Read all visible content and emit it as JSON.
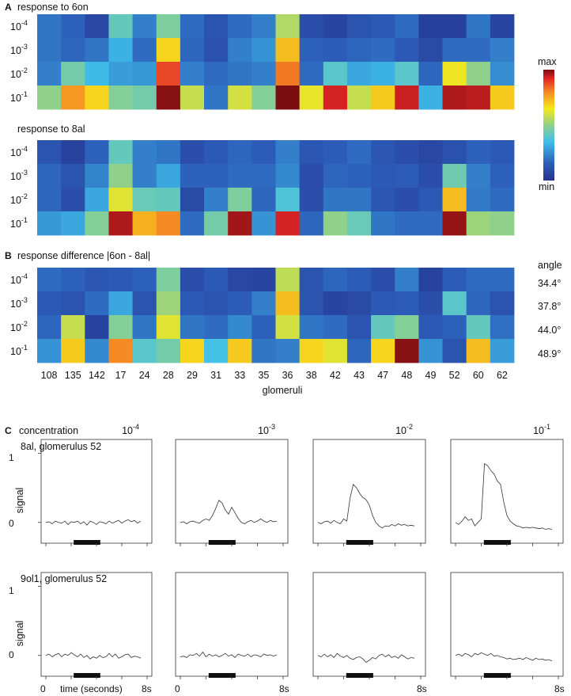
{
  "panels": {
    "A": {
      "label": "A",
      "title_6on": "response to 6on",
      "title_8al": "response to 8al"
    },
    "B": {
      "label": "B",
      "title": "response difference |6on - 8al|",
      "angle_header": "angle",
      "angles": [
        "34.4°",
        "37.8°",
        "44.0°",
        "48.9°"
      ],
      "xlabel": "glomeruli"
    },
    "C": {
      "label": "C",
      "concentration_label": "concentration",
      "concentration_labels": [
        {
          "base": "10",
          "exp": "-4"
        },
        {
          "base": "10",
          "exp": "-3"
        },
        {
          "base": "10",
          "exp": "-2"
        },
        {
          "base": "10",
          "exp": "-1"
        }
      ],
      "row1_title": "8al, glomerulus 52",
      "row2_title": "9ol1, glomerulus 52",
      "ylabel": "signal",
      "yticks": [
        "1",
        "0"
      ],
      "x_start": "0",
      "x_end": "8s",
      "xlabel": "time (seconds)"
    }
  },
  "colorbar": {
    "max_label": "max",
    "min_label": "min"
  },
  "chart_data": [
    {
      "type": "heatmap",
      "title": "response to 6on",
      "xlabel": "",
      "rows": [
        {
          "base": "10",
          "exp": "-4"
        },
        {
          "base": "10",
          "exp": "-3"
        },
        {
          "base": "10",
          "exp": "-2"
        },
        {
          "base": "10",
          "exp": "-1"
        }
      ],
      "columns": [
        "108",
        "135",
        "142",
        "17",
        "24",
        "28",
        "29",
        "31",
        "33",
        "35",
        "36",
        "38",
        "42",
        "43",
        "47",
        "48",
        "49",
        "52",
        "60",
        "62"
      ],
      "scale": "0 = min (dark blue) ... 1 = max (dark red)",
      "values": [
        [
          0.2,
          0.16,
          0.08,
          0.42,
          0.22,
          0.47,
          0.18,
          0.12,
          0.18,
          0.22,
          0.55,
          0.1,
          0.07,
          0.12,
          0.14,
          0.18,
          0.05,
          0.05,
          0.2,
          0.07
        ],
        [
          0.2,
          0.17,
          0.2,
          0.32,
          0.18,
          0.68,
          0.17,
          0.11,
          0.22,
          0.26,
          0.72,
          0.16,
          0.15,
          0.17,
          0.18,
          0.14,
          0.09,
          0.18,
          0.18,
          0.22
        ],
        [
          0.22,
          0.45,
          0.34,
          0.28,
          0.27,
          0.88,
          0.22,
          0.18,
          0.2,
          0.22,
          0.82,
          0.18,
          0.4,
          0.3,
          0.32,
          0.4,
          0.17,
          0.64,
          0.5,
          0.25
        ],
        [
          0.5,
          0.78,
          0.68,
          0.48,
          0.45,
          0.99,
          0.58,
          0.2,
          0.6,
          0.48,
          1.0,
          0.63,
          0.93,
          0.58,
          0.7,
          0.94,
          0.32,
          0.96,
          0.95,
          0.7
        ]
      ]
    },
    {
      "type": "heatmap",
      "title": "response to 8al",
      "xlabel": "",
      "rows": [
        {
          "base": "10",
          "exp": "-4"
        },
        {
          "base": "10",
          "exp": "-3"
        },
        {
          "base": "10",
          "exp": "-2"
        },
        {
          "base": "10",
          "exp": "-1"
        }
      ],
      "columns": [
        "108",
        "135",
        "142",
        "17",
        "24",
        "28",
        "29",
        "31",
        "33",
        "35",
        "36",
        "38",
        "42",
        "43",
        "47",
        "48",
        "49",
        "52",
        "60",
        "62"
      ],
      "scale": "0 = min (dark blue) ... 1 = max (dark red)",
      "values": [
        [
          0.12,
          0.06,
          0.16,
          0.42,
          0.22,
          0.2,
          0.1,
          0.14,
          0.17,
          0.15,
          0.22,
          0.13,
          0.15,
          0.18,
          0.13,
          0.1,
          0.08,
          0.11,
          0.16,
          0.14
        ],
        [
          0.17,
          0.12,
          0.23,
          0.5,
          0.22,
          0.3,
          0.16,
          0.16,
          0.18,
          0.18,
          0.24,
          0.1,
          0.17,
          0.16,
          0.14,
          0.15,
          0.1,
          0.44,
          0.22,
          0.16
        ],
        [
          0.17,
          0.1,
          0.3,
          0.62,
          0.43,
          0.42,
          0.09,
          0.22,
          0.47,
          0.17,
          0.38,
          0.1,
          0.2,
          0.2,
          0.13,
          0.1,
          0.14,
          0.72,
          0.21,
          0.18
        ],
        [
          0.27,
          0.3,
          0.48,
          0.96,
          0.74,
          0.8,
          0.18,
          0.45,
          0.97,
          0.26,
          0.93,
          0.17,
          0.5,
          0.43,
          0.2,
          0.18,
          0.18,
          0.98,
          0.52,
          0.5
        ]
      ]
    },
    {
      "type": "heatmap",
      "title": "response difference |6on - 8al|",
      "xlabel": "glomeruli",
      "rows": [
        {
          "base": "10",
          "exp": "-4"
        },
        {
          "base": "10",
          "exp": "-3"
        },
        {
          "base": "10",
          "exp": "-2"
        },
        {
          "base": "10",
          "exp": "-1"
        }
      ],
      "columns": [
        "108",
        "135",
        "142",
        "17",
        "24",
        "28",
        "29",
        "31",
        "33",
        "35",
        "36",
        "38",
        "42",
        "43",
        "47",
        "48",
        "49",
        "52",
        "60",
        "62"
      ],
      "angles": [
        "34.4°",
        "37.8°",
        "44.0°",
        "48.9°"
      ],
      "scale": "0 = min (dark blue) ... 1 = max (dark red)",
      "values": [
        [
          0.18,
          0.16,
          0.13,
          0.14,
          0.16,
          0.47,
          0.1,
          0.14,
          0.08,
          0.07,
          0.57,
          0.12,
          0.17,
          0.15,
          0.1,
          0.22,
          0.06,
          0.15,
          0.18,
          0.18
        ],
        [
          0.14,
          0.12,
          0.18,
          0.3,
          0.12,
          0.52,
          0.14,
          0.12,
          0.15,
          0.22,
          0.72,
          0.12,
          0.07,
          0.09,
          0.14,
          0.15,
          0.1,
          0.4,
          0.17,
          0.12
        ],
        [
          0.17,
          0.58,
          0.06,
          0.48,
          0.2,
          0.62,
          0.2,
          0.18,
          0.24,
          0.16,
          0.6,
          0.2,
          0.18,
          0.12,
          0.42,
          0.48,
          0.14,
          0.16,
          0.42,
          0.19
        ],
        [
          0.26,
          0.7,
          0.24,
          0.8,
          0.4,
          0.45,
          0.68,
          0.36,
          0.7,
          0.2,
          0.22,
          0.68,
          0.62,
          0.17,
          0.68,
          0.99,
          0.26,
          0.12,
          0.72,
          0.28
        ]
      ]
    },
    {
      "type": "line",
      "title": "8al, glomerulus 52",
      "xlabel": "time (seconds)",
      "ylabel": "signal",
      "xlim": [
        0,
        8
      ],
      "ylim": [
        -0.3,
        1.2
      ],
      "stimulus_window_s": [
        2.2,
        4.3
      ],
      "series": [
        {
          "name": "10^-4",
          "x": [
            0,
            0.25,
            0.5,
            0.75,
            1,
            1.25,
            1.5,
            1.75,
            2,
            2.25,
            2.5,
            2.75,
            3,
            3.25,
            3.5,
            3.75,
            4,
            4.25,
            4.5,
            4.75,
            5,
            5.25,
            5.5,
            5.75,
            6,
            6.25,
            6.5,
            6.75,
            7,
            7.25,
            7.5
          ],
          "values": [
            0.0,
            0.01,
            -0.02,
            0.02,
            0.0,
            -0.01,
            0.02,
            -0.03,
            0.01,
            0.0,
            0.02,
            -0.02,
            0.01,
            -0.04,
            0.02,
            0.0,
            -0.03,
            0.01,
            0.0,
            -0.02,
            0.02,
            -0.01,
            0.01,
            0.03,
            -0.01,
            0.02,
            0.04,
            0.01,
            0.03,
            -0.01,
            0.02
          ]
        },
        {
          "name": "10^-3",
          "x": [
            0,
            0.25,
            0.5,
            0.75,
            1,
            1.25,
            1.5,
            1.75,
            2,
            2.25,
            2.5,
            2.75,
            3,
            3.25,
            3.5,
            3.75,
            4,
            4.25,
            4.5,
            4.75,
            5,
            5.25,
            5.5,
            5.75,
            6,
            6.25,
            6.5,
            6.75,
            7,
            7.25,
            7.5
          ],
          "values": [
            0.0,
            0.01,
            -0.02,
            0.01,
            0.02,
            0.0,
            -0.01,
            0.03,
            0.05,
            0.03,
            0.1,
            0.2,
            0.32,
            0.28,
            0.18,
            0.12,
            0.22,
            0.14,
            0.06,
            0.0,
            -0.02,
            0.01,
            0.03,
            0.0,
            0.02,
            0.05,
            0.02,
            0.0,
            0.03,
            0.01,
            0.02
          ]
        },
        {
          "name": "10^-2",
          "x": [
            0,
            0.25,
            0.5,
            0.75,
            1,
            1.25,
            1.5,
            1.75,
            2,
            2.25,
            2.5,
            2.75,
            3,
            3.25,
            3.5,
            3.75,
            4,
            4.25,
            4.5,
            4.75,
            5,
            5.25,
            5.5,
            5.75,
            6,
            6.25,
            6.5,
            6.75,
            7,
            7.25,
            7.5
          ],
          "values": [
            0.0,
            -0.02,
            0.01,
            0.02,
            -0.01,
            0.03,
            0.0,
            -0.02,
            0.05,
            0.02,
            0.35,
            0.55,
            0.5,
            0.42,
            0.36,
            0.33,
            0.25,
            0.1,
            0.0,
            -0.05,
            -0.08,
            -0.05,
            -0.06,
            -0.03,
            -0.05,
            -0.02,
            -0.04,
            -0.03,
            -0.05,
            -0.04,
            -0.05
          ]
        },
        {
          "name": "10^-1",
          "x": [
            0,
            0.25,
            0.5,
            0.75,
            1,
            1.25,
            1.5,
            1.75,
            2,
            2.25,
            2.5,
            2.75,
            3,
            3.25,
            3.5,
            3.75,
            4,
            4.25,
            4.5,
            4.75,
            5,
            5.25,
            5.5,
            5.75,
            6,
            6.25,
            6.5,
            6.75,
            7,
            7.25,
            7.5
          ],
          "values": [
            0.0,
            -0.03,
            0.02,
            0.08,
            0.03,
            0.05,
            -0.05,
            0.0,
            0.05,
            0.85,
            0.82,
            0.75,
            0.7,
            0.6,
            0.55,
            0.3,
            0.1,
            0.02,
            -0.02,
            -0.05,
            -0.06,
            -0.08,
            -0.07,
            -0.08,
            -0.07,
            -0.08,
            -0.09,
            -0.08,
            -0.1,
            -0.09,
            -0.1
          ]
        }
      ]
    },
    {
      "type": "line",
      "title": "9ol1, glomerulus 52",
      "xlabel": "time (seconds)",
      "ylabel": "signal",
      "xlim": [
        0,
        8
      ],
      "ylim": [
        -0.3,
        1.2
      ],
      "stimulus_window_s": [
        2.2,
        4.3
      ],
      "series": [
        {
          "name": "10^-4",
          "x": [
            0,
            0.25,
            0.5,
            0.75,
            1,
            1.25,
            1.5,
            1.75,
            2,
            2.25,
            2.5,
            2.75,
            3,
            3.25,
            3.5,
            3.75,
            4,
            4.25,
            4.5,
            4.75,
            5,
            5.25,
            5.5,
            5.75,
            6,
            6.25,
            6.5,
            6.75,
            7,
            7.25,
            7.5
          ],
          "values": [
            0.0,
            0.02,
            -0.02,
            0.01,
            0.03,
            -0.02,
            0.02,
            0.0,
            0.04,
            0.01,
            -0.02,
            0.02,
            -0.03,
            0.0,
            -0.05,
            -0.02,
            -0.04,
            0.0,
            -0.03,
            -0.02,
            0.03,
            -0.02,
            0.02,
            -0.04,
            -0.02,
            0.01,
            0.02,
            -0.03,
            -0.01,
            -0.02,
            -0.04
          ]
        },
        {
          "name": "10^-3",
          "x": [
            0,
            0.25,
            0.5,
            0.75,
            1,
            1.25,
            1.5,
            1.75,
            2,
            2.25,
            2.5,
            2.75,
            3,
            3.25,
            3.5,
            3.75,
            4,
            4.25,
            4.5,
            4.75,
            5,
            5.25,
            5.5,
            5.75,
            6,
            6.25,
            6.5,
            6.75,
            7,
            7.25,
            7.5
          ],
          "values": [
            -0.02,
            -0.01,
            -0.03,
            0.01,
            0.0,
            0.03,
            -0.01,
            0.05,
            -0.02,
            0.02,
            -0.01,
            0.01,
            -0.02,
            0.0,
            0.03,
            -0.01,
            0.01,
            -0.03,
            0.02,
            0.0,
            -0.01,
            0.02,
            -0.02,
            0.01,
            0.0,
            -0.02,
            0.02,
            0.0,
            0.01,
            -0.01,
            0.01
          ]
        },
        {
          "name": "10^-2",
          "x": [
            0,
            0.25,
            0.5,
            0.75,
            1,
            1.25,
            1.5,
            1.75,
            2,
            2.25,
            2.5,
            2.75,
            3,
            3.25,
            3.5,
            3.75,
            4,
            4.25,
            4.5,
            4.75,
            5,
            5.25,
            5.5,
            5.75,
            6,
            6.25,
            6.5,
            6.75,
            7,
            7.25,
            7.5
          ],
          "values": [
            0.0,
            -0.02,
            0.02,
            -0.02,
            0.01,
            -0.03,
            0.03,
            -0.01,
            -0.03,
            0.0,
            -0.04,
            -0.06,
            -0.03,
            -0.02,
            -0.05,
            -0.1,
            -0.07,
            -0.03,
            -0.05,
            0.0,
            0.02,
            -0.02,
            0.01,
            -0.03,
            -0.01,
            -0.04,
            0.01,
            -0.02,
            -0.05,
            -0.03,
            -0.04
          ]
        },
        {
          "name": "10^-1",
          "x": [
            0,
            0.25,
            0.5,
            0.75,
            1,
            1.25,
            1.5,
            1.75,
            2,
            2.25,
            2.5,
            2.75,
            3,
            3.25,
            3.5,
            3.75,
            4,
            4.25,
            4.5,
            4.75,
            5,
            5.25,
            5.5,
            5.75,
            6,
            6.25,
            6.5,
            6.75,
            7,
            7.25,
            7.5
          ],
          "values": [
            0.0,
            0.02,
            -0.01,
            0.03,
            0.01,
            -0.02,
            0.03,
            0.01,
            0.04,
            0.02,
            0.0,
            0.03,
            -0.01,
            0.0,
            -0.02,
            -0.03,
            -0.05,
            -0.04,
            -0.06,
            -0.05,
            -0.04,
            -0.06,
            -0.03,
            -0.05,
            -0.07,
            -0.04,
            -0.06,
            -0.05,
            -0.07,
            -0.06,
            -0.08
          ]
        }
      ]
    }
  ]
}
